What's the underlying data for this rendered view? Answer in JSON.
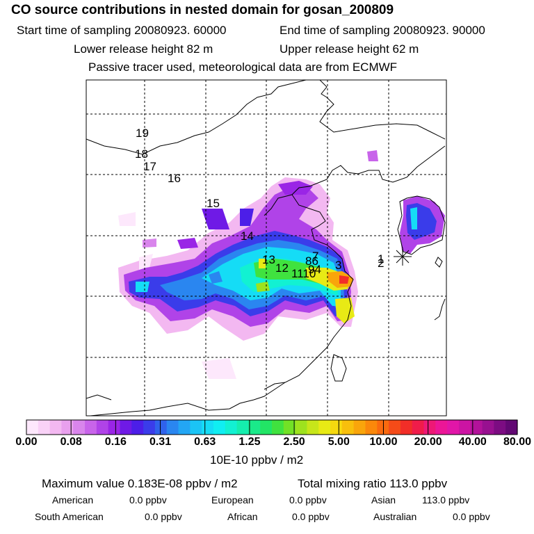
{
  "header": {
    "title": "CO  source contributions in nested domain for gosan_200809",
    "start_label": "Start time of sampling 20080923. 60000",
    "end_label": "End time of sampling 20080923. 90000",
    "lower_label": "Lower release height   82 m",
    "upper_label": "Upper release height   62 m",
    "tracer_note": "Passive tracer used, meteorological data are from ECMWF"
  },
  "map": {
    "markers": [
      {
        "id": "1",
        "label": "1"
      },
      {
        "id": "2",
        "label": "2"
      },
      {
        "id": "3",
        "label": "3"
      },
      {
        "id": "7",
        "label": "7"
      },
      {
        "id": "86",
        "label": "86"
      },
      {
        "id": "94",
        "label": "94"
      },
      {
        "id": "1110",
        "label": "1110"
      },
      {
        "id": "12",
        "label": "12"
      },
      {
        "id": "13",
        "label": "13"
      },
      {
        "id": "14",
        "label": "14"
      },
      {
        "id": "15",
        "label": "15"
      },
      {
        "id": "16",
        "label": "16"
      },
      {
        "id": "17",
        "label": "17"
      },
      {
        "id": "18",
        "label": "18"
      },
      {
        "id": "19",
        "label": "19"
      }
    ],
    "receptor_symbol": "star-asterisk"
  },
  "colorbar": {
    "tick_labels": [
      "0.00",
      "0.08",
      "0.16",
      "0.31",
      "0.63",
      "1.25",
      "2.50",
      "5.00",
      "10.00",
      "20.00",
      "40.00",
      "80.00"
    ],
    "units": "10E-10 ppbv / m2",
    "colors": [
      "#fde8fc",
      "#f9d2f7",
      "#f3b8f1",
      "#e9a0ee",
      "#d985ec",
      "#c864ea",
      "#b043e8",
      "#9a25e6",
      "#6f1ae6",
      "#4c1ee8",
      "#3a3cea",
      "#2f62ec",
      "#2a86f0",
      "#23a6f4",
      "#1bc4f6",
      "#15dcf6",
      "#10eef2",
      "#12f1d2",
      "#15eeae",
      "#1ae98a",
      "#22e565",
      "#40e23f",
      "#72e126",
      "#9ee21e",
      "#c7e61a",
      "#e8ea15",
      "#f5d80f",
      "#f8bf0c",
      "#f9a50b",
      "#fa880b",
      "#f96a0f",
      "#f54b18",
      "#f22e28",
      "#f01c4a",
      "#ee1876",
      "#ec1697",
      "#e116a8",
      "#cc14a3",
      "#b2129a",
      "#981090",
      "#7c0c82",
      "#620873"
    ]
  },
  "stats": {
    "maximum": "Maximum value  0.183E-08 ppbv / m2",
    "total": "Total mixing ratio      113.0 ppbv",
    "regions": [
      {
        "name": "American",
        "value": "0.0 ppbv"
      },
      {
        "name": "European",
        "value": "0.0 ppbv"
      },
      {
        "name": "Asian",
        "value": "113.0 ppbv"
      },
      {
        "name": "South American",
        "value": "0.0 ppbv"
      },
      {
        "name": "African",
        "value": "0.0 ppbv"
      },
      {
        "name": "Australian",
        "value": "0.0 ppbv"
      }
    ]
  }
}
